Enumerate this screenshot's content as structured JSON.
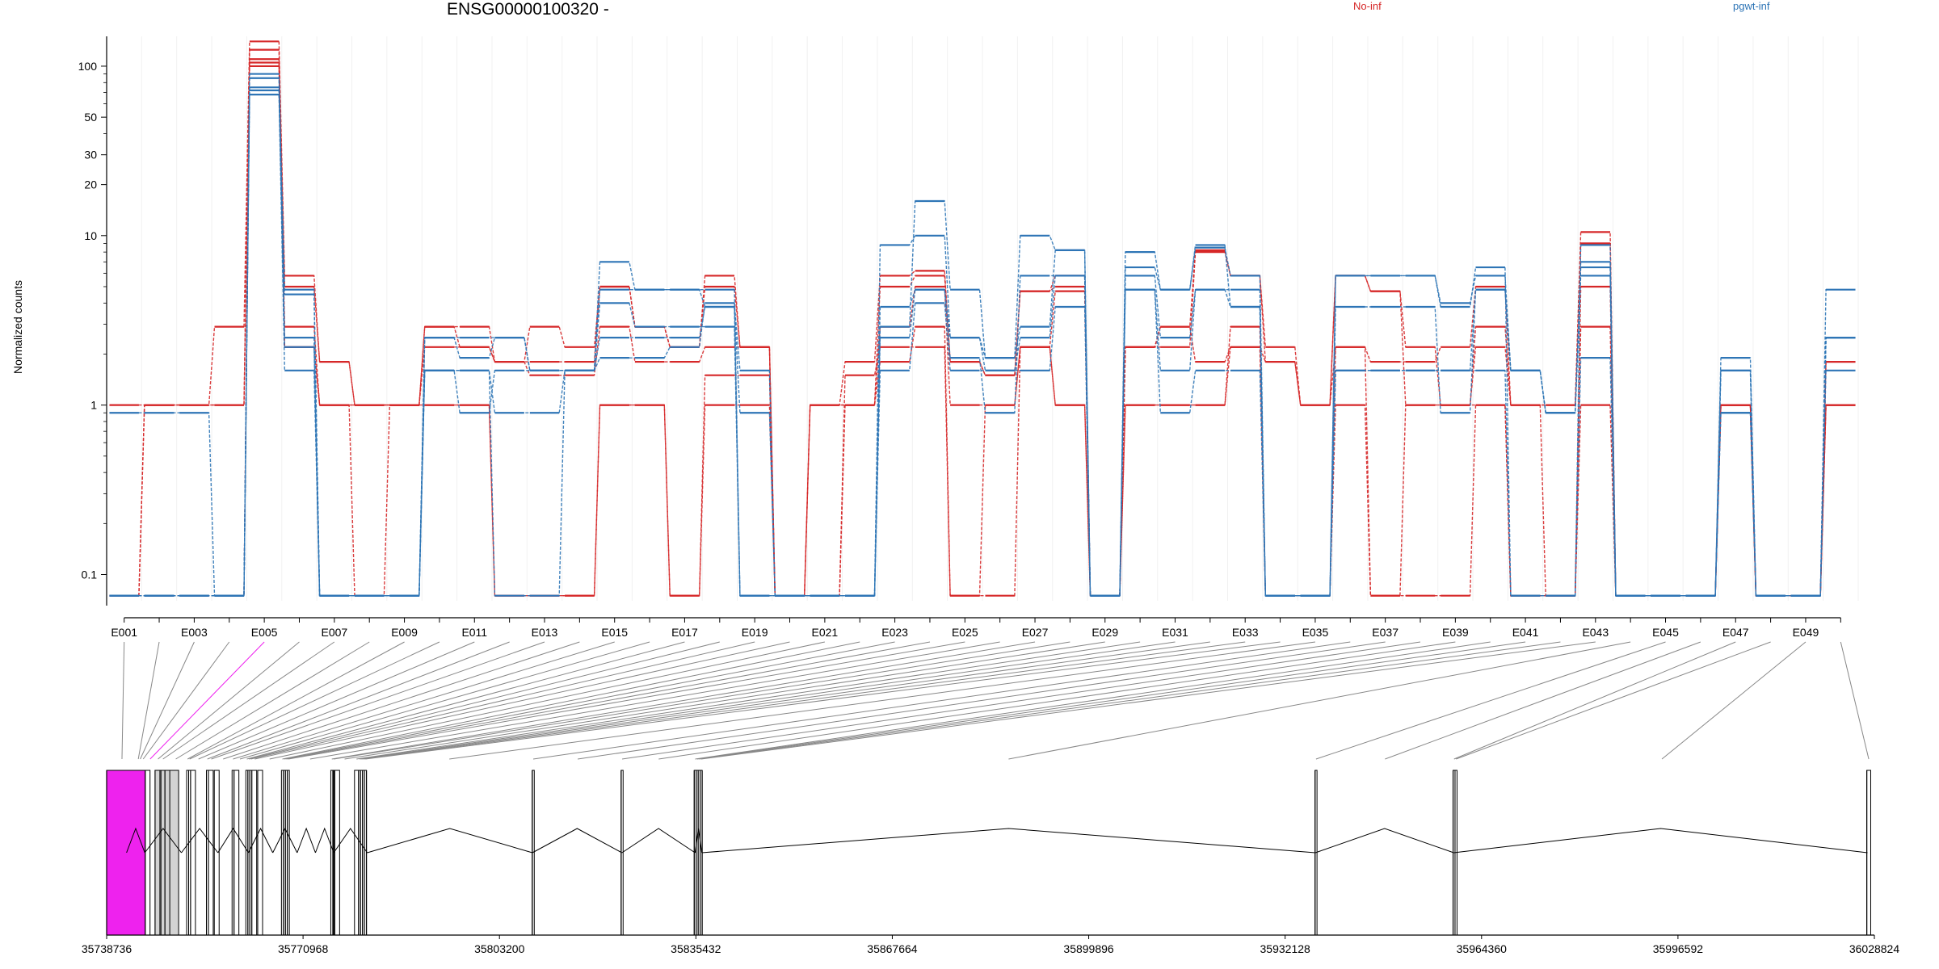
{
  "colors": {
    "group_a": "#d62728",
    "group_b": "#2e75b6",
    "highlight": "#ee22ee",
    "gray_exon": "#d3d3d3",
    "axis": "#000000"
  },
  "chart_data": {
    "type": "line",
    "title": "ENSG00000100320 -",
    "ylabel": "Normalized counts",
    "y_scale": "log",
    "ylim": [
      0.07,
      150
    ],
    "y_ticks": [
      0.1,
      1,
      10,
      20,
      30,
      50,
      100
    ],
    "y_tick_labels": [
      "0.1",
      "1",
      "10",
      "20",
      "30",
      "50",
      "100"
    ],
    "legend": [
      {
        "name": "No-inf",
        "color": "#d62728"
      },
      {
        "name": "pgwt-inf",
        "color": "#2e75b6"
      }
    ],
    "exon_count": 50,
    "exon_tick_labels": [
      "E001",
      "E003",
      "E005",
      "E007",
      "E009",
      "E011",
      "E013",
      "E015",
      "E017",
      "E019",
      "E021",
      "E023",
      "E025",
      "E027",
      "E029",
      "E031",
      "E033",
      "E035",
      "E037",
      "E039",
      "E041",
      "E043",
      "E045",
      "E047",
      "E049"
    ],
    "series": [
      {
        "group": "No-inf",
        "values": [
          0.075,
          1,
          1,
          2.9,
          140,
          5.8,
          1.8,
          1,
          1,
          2.9,
          2.9,
          1.8,
          2.9,
          2.2,
          5,
          2.9,
          2.2,
          5.8,
          2.2,
          0.075,
          1,
          1.8,
          5.8,
          6.2,
          1.8,
          1.5,
          4.7,
          5.8,
          0.075,
          2.2,
          2.9,
          8.2,
          5.8,
          2.2,
          1,
          5.8,
          4.7,
          1,
          1,
          2.9,
          1,
          1,
          10.5,
          0.075,
          0.075,
          0.075,
          1,
          0.075,
          0.075,
          1
        ]
      },
      {
        "group": "No-inf",
        "values": [
          1,
          1,
          1,
          1,
          110,
          5,
          1.8,
          1,
          1,
          2.2,
          2.2,
          1.8,
          1.8,
          1.8,
          5,
          2.9,
          2.2,
          5,
          2.2,
          0.075,
          1,
          1,
          5,
          5.8,
          1.8,
          1.5,
          4.7,
          5,
          0.075,
          2.2,
          2.2,
          8,
          5.8,
          1.8,
          1,
          5.8,
          4.7,
          2.2,
          1,
          2.2,
          1,
          1,
          9,
          0.075,
          0.075,
          0.075,
          1,
          0.075,
          0.075,
          1.8
        ]
      },
      {
        "group": "No-inf",
        "values": [
          0.075,
          1,
          1,
          1,
          105,
          2.9,
          1,
          1,
          1,
          2.9,
          2.2,
          1.8,
          1.5,
          1.5,
          2.9,
          1.8,
          1.8,
          2.2,
          2.2,
          0.075,
          1,
          1,
          2.9,
          5,
          1,
          1,
          2.2,
          4.7,
          0.075,
          2.2,
          2.9,
          1.8,
          2.2,
          1.8,
          1,
          2.2,
          1.8,
          1.8,
          2.2,
          5,
          1,
          0.075,
          2.9,
          0.075,
          0.075,
          0.075,
          1,
          0.075,
          0.075,
          1.8
        ]
      },
      {
        "group": "No-inf",
        "values": [
          0.075,
          0.075,
          0.075,
          0.075,
          100,
          2.2,
          1,
          0.075,
          1,
          1,
          1,
          0.075,
          0.075,
          0.075,
          1,
          1,
          0.075,
          1.5,
          1.5,
          0.075,
          0.075,
          1.5,
          2.2,
          2.2,
          0.075,
          1,
          2.2,
          1,
          0.075,
          1,
          1,
          1,
          2.2,
          0.075,
          0.075,
          2.2,
          0.075,
          1,
          1,
          1,
          0.075,
          0.075,
          5,
          0.075,
          0.075,
          0.075,
          1,
          0.075,
          0.075,
          1
        ]
      },
      {
        "group": "No-inf",
        "values": [
          0.075,
          0.075,
          0.075,
          0.075,
          125,
          2.2,
          1,
          1,
          1,
          1,
          1,
          0.075,
          0.075,
          0.075,
          1,
          1,
          0.075,
          1,
          1,
          0.075,
          0.075,
          1,
          1.8,
          2.9,
          0.075,
          0.075,
          2.2,
          1,
          0.075,
          1,
          1,
          1,
          2.9,
          0.075,
          0.075,
          1,
          0.075,
          0.075,
          0.075,
          1,
          0.075,
          0.075,
          1,
          0.075,
          0.075,
          0.075,
          1,
          0.075,
          0.075,
          1
        ]
      },
      {
        "group": "pgwt-inf",
        "values": [
          0.9,
          0.9,
          0.9,
          0.075,
          68,
          1.6,
          0.075,
          0.075,
          0.075,
          1.6,
          1.6,
          0.075,
          0.075,
          1.6,
          1.9,
          1.9,
          2.2,
          4,
          1.6,
          0.075,
          0.075,
          0.075,
          1.6,
          4,
          1.6,
          1.6,
          1.6,
          3.8,
          0.075,
          4.8,
          0.9,
          1.6,
          1.6,
          0.075,
          0.075,
          1.6,
          1.6,
          1.6,
          1.6,
          1.6,
          0.075,
          0.075,
          1.9,
          0.075,
          0.075,
          0.075,
          1.6,
          0.075,
          0.075,
          1.6
        ]
      },
      {
        "group": "pgwt-inf",
        "values": [
          0.075,
          0.075,
          0.075,
          0.075,
          72,
          4.8,
          0.075,
          0.075,
          0.075,
          2.5,
          2.5,
          2.5,
          1.6,
          1.6,
          4.8,
          4.8,
          4.8,
          3.8,
          0.075,
          0.075,
          0.075,
          0.075,
          2.5,
          4.8,
          2.5,
          1.6,
          2.5,
          5.8,
          0.075,
          4.8,
          1.6,
          4.8,
          4.8,
          0.075,
          0.075,
          3.8,
          3.8,
          3.8,
          0.9,
          4.8,
          1.6,
          0.9,
          5.8,
          0.075,
          0.075,
          0.075,
          1.6,
          0.075,
          0.075,
          2.5
        ]
      },
      {
        "group": "pgwt-inf",
        "values": [
          0.075,
          0.075,
          0.075,
          0.075,
          85,
          4.5,
          0.075,
          0.075,
          0.075,
          1.6,
          1.6,
          0.9,
          0.9,
          1.6,
          2.5,
          2.5,
          2.5,
          3.8,
          0.9,
          0.075,
          0.075,
          0.075,
          3.8,
          4.8,
          1.9,
          0.9,
          5.8,
          5.8,
          0.075,
          5.8,
          2.5,
          4.8,
          3.8,
          0.075,
          0.075,
          1.6,
          1.6,
          1.6,
          1.6,
          4.8,
          1.6,
          0.9,
          7,
          0.075,
          0.075,
          0.075,
          0.9,
          0.075,
          0.075,
          4.8
        ]
      },
      {
        "group": "pgwt-inf",
        "values": [
          0.075,
          0.075,
          0.075,
          0.075,
          90,
          2.5,
          0.075,
          0.075,
          0.075,
          2.5,
          1.9,
          2.5,
          1.6,
          1.6,
          7,
          4.8,
          4.8,
          4.8,
          0.075,
          0.075,
          0.075,
          0.075,
          8.8,
          10,
          2.5,
          1.9,
          10,
          8.2,
          0.075,
          8,
          4.8,
          8.5,
          5.8,
          0.075,
          0.075,
          5.8,
          5.8,
          5.8,
          3.8,
          6.5,
          0.075,
          0.075,
          8.8,
          0.075,
          0.075,
          0.075,
          1.9,
          0.075,
          0.075,
          2.5
        ]
      },
      {
        "group": "pgwt-inf",
        "values": [
          0.075,
          0.075,
          0.075,
          0.075,
          75,
          2.2,
          0.075,
          0.075,
          0.075,
          1.6,
          0.9,
          1.6,
          1.6,
          1.6,
          4,
          2.9,
          2.9,
          2.9,
          0.075,
          0.075,
          0.075,
          0.075,
          2.9,
          16,
          4.8,
          1.9,
          2.9,
          8.2,
          0.075,
          6.5,
          4.8,
          8.8,
          3.8,
          0.075,
          0.075,
          5.8,
          5.8,
          5.8,
          4,
          5.8,
          1.6,
          0.9,
          6.5,
          0.075,
          0.075,
          0.075,
          0.9,
          0.075,
          0.075,
          2.5
        ]
      }
    ],
    "genomic_ticks": [
      35738736,
      35770968,
      35803200,
      35835432,
      35867664,
      35899896,
      35932128,
      35964360,
      35996592,
      36028824
    ],
    "genomic_tick_labels": [
      "35738736",
      "35770968",
      "35803200",
      "35835432",
      "35867664",
      "35899896",
      "35932128",
      "35964360",
      "35996592",
      "36028824"
    ],
    "genomic_range": [
      35738736,
      36028824
    ],
    "exon_boundaries": [
      [
        35738736,
        35743766
      ],
      [
        35743766,
        35744090
      ],
      [
        35744090,
        35744410
      ],
      [
        35744410,
        35745060
      ],
      [
        35745060,
        35746680
      ],
      [
        35746680,
        35747650
      ],
      [
        35747650,
        35748300
      ],
      [
        35748300,
        35751860
      ],
      [
        35751860,
        35752190
      ],
      [
        35752190,
        35752510
      ],
      [
        35752510,
        35755110
      ],
      [
        35755110,
        35755430
      ],
      [
        35755430,
        35756400
      ],
      [
        35756400,
        35759320
      ],
      [
        35759320,
        35759640
      ],
      [
        35759640,
        35761580
      ],
      [
        35761580,
        35761910
      ],
      [
        35761910,
        35762230
      ],
      [
        35762230,
        35762560
      ],
      [
        35762560,
        35763530
      ],
      [
        35763530,
        35767420
      ],
      [
        35767420,
        35767740
      ],
      [
        35767740,
        35768070
      ],
      [
        35768070,
        35768390
      ],
      [
        35768390,
        35768720
      ],
      [
        35768720,
        35775520
      ],
      [
        35775520,
        35775850
      ],
      [
        35775850,
        35776170
      ],
      [
        35776170,
        35779410
      ],
      [
        35779410,
        35780070
      ],
      [
        35780070,
        35780390
      ],
      [
        35780390,
        35780720
      ],
      [
        35780720,
        35781040
      ],
      [
        35781040,
        35781370
      ],
      [
        35781370,
        35808580
      ],
      [
        35808580,
        35808910
      ],
      [
        35808910,
        35823170
      ],
      [
        35823170,
        35823490
      ],
      [
        35823490,
        35835160
      ],
      [
        35835160,
        35835480
      ],
      [
        35835480,
        35835810
      ],
      [
        35835810,
        35836130
      ],
      [
        35836130,
        35836460
      ],
      [
        35836460,
        35937040
      ],
      [
        35937040,
        35937360
      ],
      [
        35937360,
        35959690
      ],
      [
        35959690,
        35960010
      ],
      [
        35960010,
        35960340
      ],
      [
        35960340,
        36027580
      ],
      [
        36027580,
        36028224
      ]
    ],
    "highlighted_exons": [
      4
    ],
    "gray_blocks": [
      [
        35746680,
        35750550
      ]
    ]
  }
}
